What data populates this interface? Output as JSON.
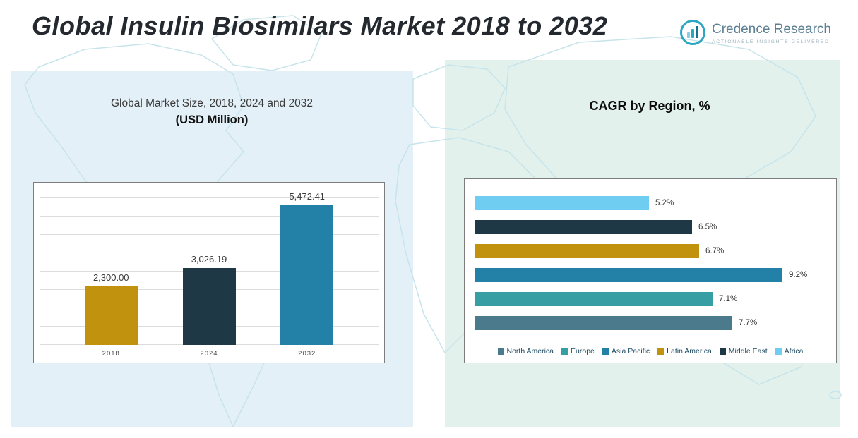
{
  "page": {
    "title": "Global Insulin Biosimilars Market 2018 to 2032"
  },
  "logo": {
    "name": "Credence Research",
    "tagline": "Actionable Insights Delivered"
  },
  "left_chart": {
    "title_line1": "Global Market Size, 2018, 2024 and 2032",
    "title_line2": "(USD Million)"
  },
  "right_chart": {
    "title": "CAGR by Region, %"
  },
  "chart_data": [
    {
      "type": "bar",
      "orientation": "vertical",
      "title": "Global Market Size, 2018, 2024 and 2032 (USD Million)",
      "categories": [
        "2018",
        "2024",
        "2032"
      ],
      "values": [
        2300.0,
        3026.19,
        5472.41
      ],
      "value_labels": [
        "2,300.00",
        "3,026.19",
        "5,472.41"
      ],
      "colors": [
        "#c0920e",
        "#1f3845",
        "#2380a6"
      ],
      "xlabel": "",
      "ylabel": "USD Million",
      "ylim": [
        0,
        6000
      ],
      "grid": true,
      "legend_position": "none"
    },
    {
      "type": "bar",
      "orientation": "horizontal",
      "title": "CAGR by Region, %",
      "categories": [
        "Africa",
        "Middle East",
        "Latin America",
        "Asia Pacific",
        "Europe",
        "North America"
      ],
      "values": [
        5.2,
        6.5,
        6.7,
        9.2,
        7.1,
        7.7
      ],
      "value_labels": [
        "5.2%",
        "6.5%",
        "6.7%",
        "9.2%",
        "7.1%",
        "7.7%"
      ],
      "colors": [
        "#6fcdf1",
        "#1f3845",
        "#c0920e",
        "#2380a6",
        "#379fa4",
        "#4a7a8c"
      ],
      "xlim": [
        0,
        10
      ],
      "grid": false,
      "legend_position": "bottom",
      "legend": [
        {
          "label": "North America",
          "color": "#4a7a8c"
        },
        {
          "label": "Europe",
          "color": "#379fa4"
        },
        {
          "label": "Asia Pacific",
          "color": "#2380a6"
        },
        {
          "label": "Latin America",
          "color": "#c0920e"
        },
        {
          "label": "Middle East",
          "color": "#1f3845"
        },
        {
          "label": "Africa",
          "color": "#6fcdf1"
        }
      ]
    }
  ]
}
